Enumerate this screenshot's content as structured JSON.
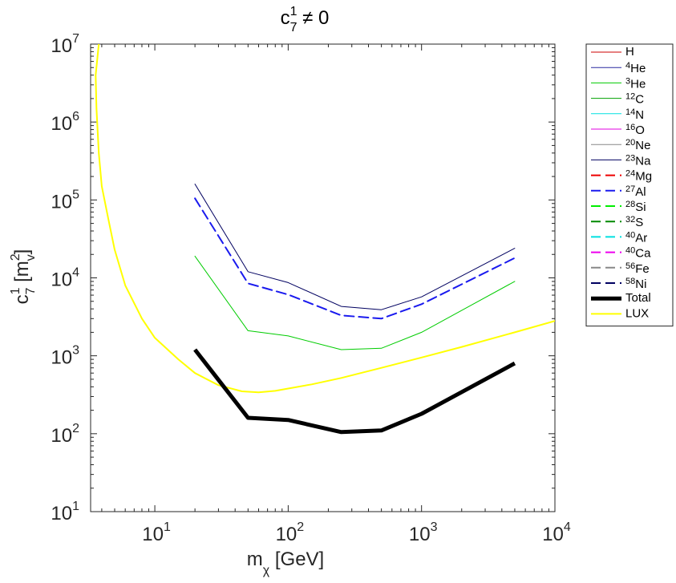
{
  "chart_data": {
    "type": "line",
    "title": {
      "base": "c",
      "sup": "1",
      "sub": "7",
      "rest": " ≠ 0"
    },
    "xlabel": {
      "base": "m",
      "sub": "χ",
      "rest": " [GeV]"
    },
    "ylabel": {
      "base": "c",
      "sup": "1",
      "sub": "7",
      "rest": " [m",
      "sup2": "2",
      "sub2": "v",
      "end": "]"
    },
    "xscale": "log",
    "yscale": "log",
    "xlim": [
      3.3,
      10000
    ],
    "ylim": [
      10,
      10000000
    ],
    "xticks": [
      {
        "value": 10,
        "base": "10",
        "exp": "1"
      },
      {
        "value": 100,
        "base": "10",
        "exp": "2"
      },
      {
        "value": 1000,
        "base": "10",
        "exp": "3"
      },
      {
        "value": 10000,
        "base": "10",
        "exp": "4"
      }
    ],
    "yticks": [
      {
        "value": 10,
        "base": "10",
        "exp": "1"
      },
      {
        "value": 100,
        "base": "10",
        "exp": "2"
      },
      {
        "value": 1000,
        "base": "10",
        "exp": "3"
      },
      {
        "value": 10000,
        "base": "10",
        "exp": "4"
      },
      {
        "value": 100000,
        "base": "10",
        "exp": "5"
      },
      {
        "value": 1000000,
        "base": "10",
        "exp": "6"
      },
      {
        "value": 10000000,
        "base": "10",
        "exp": "7"
      }
    ],
    "legend_position": "outside-right",
    "legend": [
      {
        "sup": "",
        "name": "H",
        "color": "#cc0000",
        "dash": "solid",
        "width": 1
      },
      {
        "sup": "4",
        "name": "He",
        "color": "#2a2aa0",
        "dash": "solid",
        "width": 1
      },
      {
        "sup": "3",
        "name": "He",
        "color": "#00cc00",
        "dash": "solid",
        "width": 1
      },
      {
        "sup": "12",
        "name": "C",
        "color": "#00a000",
        "dash": "solid",
        "width": 1
      },
      {
        "sup": "14",
        "name": "N",
        "color": "#00e0e0",
        "dash": "solid",
        "width": 1
      },
      {
        "sup": "16",
        "name": "O",
        "color": "#e000e0",
        "dash": "solid",
        "width": 1
      },
      {
        "sup": "20",
        "name": "Ne",
        "color": "#888888",
        "dash": "solid",
        "width": 1
      },
      {
        "sup": "23",
        "name": "Na",
        "color": "#000060",
        "dash": "solid",
        "width": 1
      },
      {
        "sup": "24",
        "name": "Mg",
        "color": "#ee0000",
        "dash": "dashed",
        "width": 2
      },
      {
        "sup": "27",
        "name": "Al",
        "color": "#1a1aee",
        "dash": "dashed",
        "width": 2
      },
      {
        "sup": "28",
        "name": "Si",
        "color": "#00ee00",
        "dash": "dashed",
        "width": 2
      },
      {
        "sup": "32",
        "name": "S",
        "color": "#008800",
        "dash": "dashed",
        "width": 2
      },
      {
        "sup": "40",
        "name": "Ar",
        "color": "#00e0e0",
        "dash": "dashed",
        "width": 2
      },
      {
        "sup": "40",
        "name": "Ca",
        "color": "#ee00ee",
        "dash": "dashed",
        "width": 2
      },
      {
        "sup": "56",
        "name": "Fe",
        "color": "#888888",
        "dash": "dashed",
        "width": 2
      },
      {
        "sup": "58",
        "name": "Ni",
        "color": "#000060",
        "dash": "dashed",
        "width": 2
      },
      {
        "sup": "",
        "name": "Total",
        "color": "#000000",
        "dash": "solid",
        "width": 5
      },
      {
        "sup": "",
        "name": "LUX",
        "color": "#ffff00",
        "dash": "solid",
        "width": 2
      }
    ],
    "series": [
      {
        "name": "23Na",
        "color": "#000060",
        "dash": "solid",
        "width": 1,
        "x": [
          20,
          50,
          100,
          250,
          500,
          1000,
          5000
        ],
        "y": [
          160000,
          12000,
          8700,
          4300,
          3900,
          5700,
          24000
        ]
      },
      {
        "name": "27Al",
        "color": "#1a1aee",
        "dash": "dashed",
        "width": 2,
        "x": [
          20,
          50,
          100,
          250,
          500,
          1000,
          5000
        ],
        "y": [
          105000,
          8500,
          6100,
          3300,
          3000,
          4600,
          18000
        ]
      },
      {
        "name": "3He",
        "color": "#00cc00",
        "dash": "solid",
        "width": 1,
        "x": [
          20,
          50,
          100,
          250,
          500,
          1000,
          5000
        ],
        "y": [
          19000,
          2100,
          1800,
          1200,
          1250,
          2000,
          9000
        ]
      },
      {
        "name": "LUX",
        "color": "#ffff00",
        "dash": "solid",
        "width": 2,
        "x": [
          3.8,
          3.6,
          3.65,
          3.8,
          4.0,
          4.5,
          5.0,
          6.0,
          8.0,
          10.0,
          15.0,
          20.0,
          30.0,
          45.0,
          60.0,
          80.0,
          100.0,
          150.0,
          250.0,
          500.0,
          1000.0,
          2000.0,
          5000.0,
          10000.0
        ],
        "y": [
          10000000,
          4000000,
          1500000,
          400000,
          150000,
          55000,
          23000,
          8000,
          3000,
          1700,
          900,
          600,
          420,
          350,
          340,
          355,
          380,
          430,
          520,
          700,
          950,
          1300,
          2000,
          2800
        ]
      },
      {
        "name": "Total",
        "color": "#000000",
        "dash": "solid",
        "width": 5,
        "x": [
          20,
          50,
          100,
          250,
          500,
          1000,
          5000
        ],
        "y": [
          1200,
          160,
          150,
          105,
          110,
          180,
          800
        ]
      }
    ]
  }
}
